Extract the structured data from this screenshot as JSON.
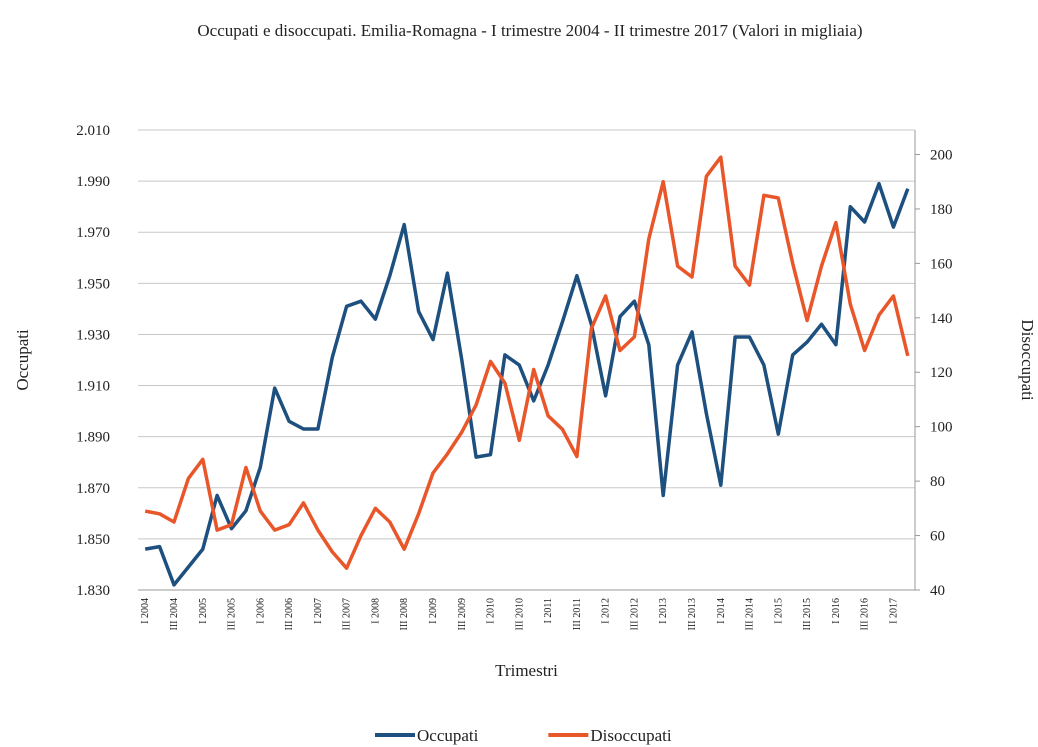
{
  "chart_data": {
    "type": "line",
    "title": "Occupati e disoccupati. Emilia-Romagna  - I trimestre 2004 - II trimestre 2017 (Valori in migliaia)",
    "xlabel": "Trimestri",
    "ylabel": "Occupati",
    "y2label": "Disoccupati",
    "categories": [
      "I 2004",
      null,
      "III 2004",
      null,
      "I 2005",
      null,
      "III 2005",
      null,
      "I 2006",
      null,
      "III 2006",
      null,
      "I 2007",
      null,
      "III 2007",
      null,
      "I 2008",
      null,
      "III 2008",
      null,
      "I 2009",
      null,
      "III 2009",
      null,
      "I 2010",
      null,
      "III 2010",
      null,
      "I 2011",
      null,
      "III 2011",
      null,
      "I 2012",
      null,
      "III 2012",
      null,
      "I 2013",
      null,
      "III 2013",
      null,
      "I 2014",
      null,
      "III 2014",
      null,
      "I 2015",
      null,
      "III 2015",
      null,
      "I 2016",
      null,
      "III 2016",
      null,
      "I 2017",
      null
    ],
    "series": [
      {
        "name": "Occupati",
        "color": "#1d4f7f",
        "axis": "y",
        "values": [
          1846,
          1847,
          1832,
          1839,
          1846,
          1867,
          1854,
          1861,
          1878,
          1909,
          1896,
          1893,
          1893,
          1921,
          1941,
          1943,
          1936,
          1953,
          1973,
          1939,
          1928,
          1954,
          1920,
          1882,
          1883,
          1922,
          1918,
          1904,
          1918,
          1935,
          1953,
          1934,
          1906,
          1937,
          1943,
          1926,
          1867,
          1918,
          1931,
          1899,
          1871,
          1929,
          1929,
          1918,
          1891,
          1922,
          1927,
          1934,
          1926,
          1980,
          1974,
          1989,
          1972,
          1987
        ]
      },
      {
        "name": "Disoccupati",
        "color": "#e8562a",
        "axis": "y2",
        "values": [
          69,
          68,
          65,
          81,
          88,
          62,
          64,
          85,
          69,
          62,
          64,
          72,
          62,
          54,
          48,
          60,
          70,
          65,
          55,
          68,
          83,
          90,
          98,
          108,
          124,
          116,
          95,
          121,
          104,
          99,
          89,
          136,
          148,
          128,
          133,
          169,
          190,
          159,
          155,
          192,
          199,
          159,
          152,
          185,
          184,
          160,
          139,
          159,
          175,
          145,
          128,
          141,
          148,
          126
        ]
      }
    ],
    "ylim": [
      1830,
      2010
    ],
    "yticks": [
      {
        "value": 1830,
        "label": "1.830"
      },
      {
        "value": 1850,
        "label": "1.850"
      },
      {
        "value": 1870,
        "label": "1.870"
      },
      {
        "value": 1890,
        "label": "1.890"
      },
      {
        "value": 1910,
        "label": "1.910"
      },
      {
        "value": 1930,
        "label": "1.930"
      },
      {
        "value": 1950,
        "label": "1.950"
      },
      {
        "value": 1970,
        "label": "1.970"
      },
      {
        "value": 1990,
        "label": "1.990"
      },
      {
        "value": 2010,
        "label": "2.010"
      }
    ],
    "y2lim": [
      40,
      209
    ],
    "y2ticks": [
      40,
      60,
      80,
      100,
      120,
      140,
      160,
      180,
      200
    ],
    "grid": true,
    "legend": "bottom"
  }
}
